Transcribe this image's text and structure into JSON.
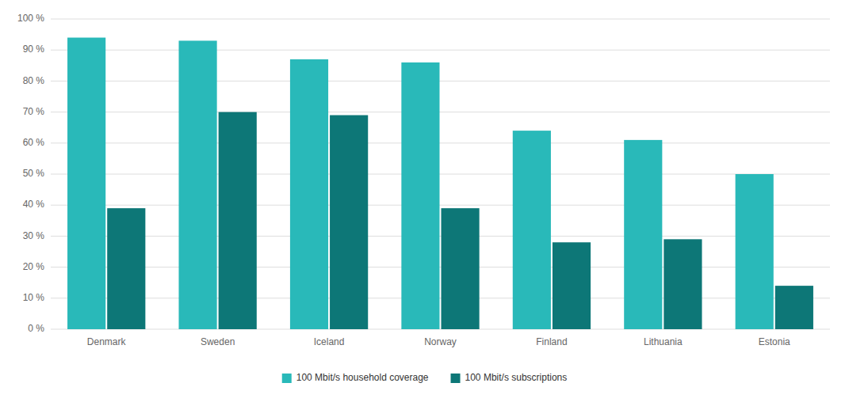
{
  "chart_data": {
    "type": "bar",
    "categories": [
      "Denmark",
      "Sweden",
      "Iceland",
      "Norway",
      "Finland",
      "Lithuania",
      "Estonia"
    ],
    "series": [
      {
        "name": "100 Mbit/s household coverage",
        "color": "#29B9B9",
        "values": [
          94,
          93,
          87,
          86,
          64,
          61,
          50
        ]
      },
      {
        "name": "100 Mbit/s subscriptions",
        "color": "#0D7777",
        "values": [
          39,
          70,
          69,
          39,
          28,
          29,
          14
        ]
      }
    ],
    "ylim": [
      0,
      100
    ],
    "yticks": [
      {
        "value": 0,
        "label": "0 %"
      },
      {
        "value": 10,
        "label": "10 %"
      },
      {
        "value": 20,
        "label": "20 %"
      },
      {
        "value": 30,
        "label": "30 %"
      },
      {
        "value": 40,
        "label": "40 %"
      },
      {
        "value": 50,
        "label": "50 %"
      },
      {
        "value": 60,
        "label": "60 %"
      },
      {
        "value": 70,
        "label": "70 %"
      },
      {
        "value": 80,
        "label": "80 %"
      },
      {
        "value": 90,
        "label": "90 %"
      },
      {
        "value": 100,
        "label": "100 %"
      }
    ],
    "grid": true,
    "legend": "bottom"
  }
}
